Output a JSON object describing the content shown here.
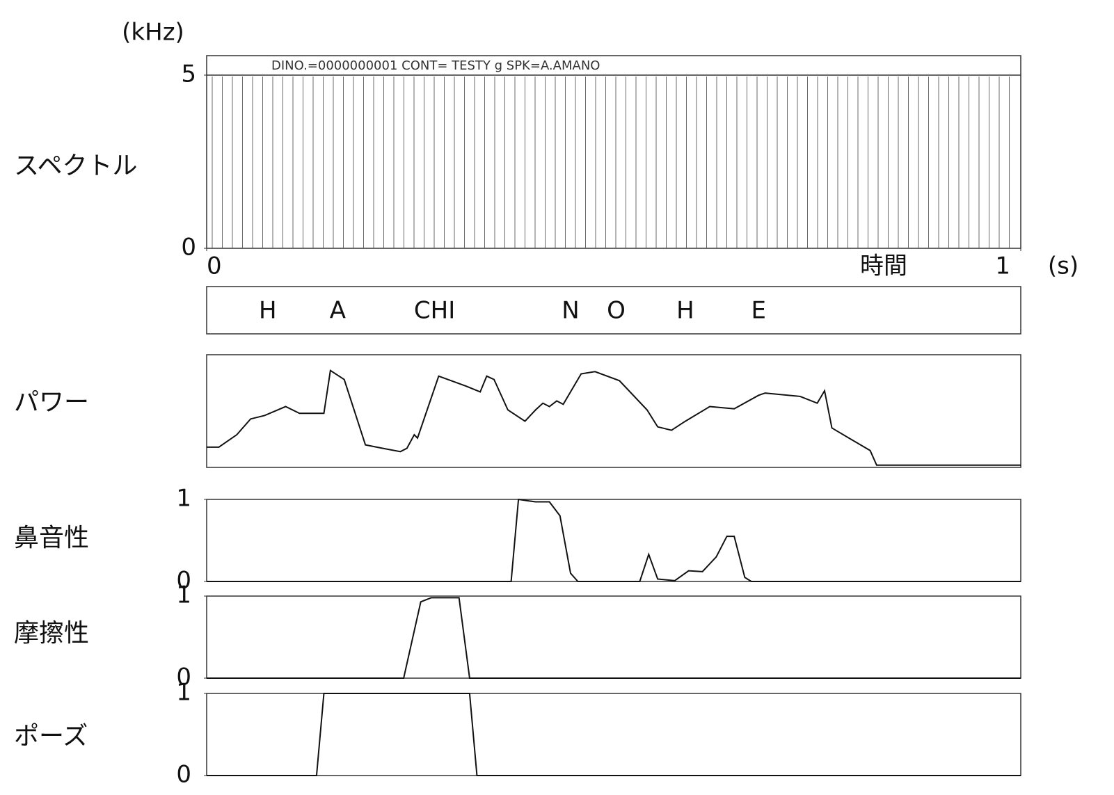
{
  "chart_data": [
    {
      "type": "waterfall",
      "ylabel": "スペクトル",
      "yunit": "(kHz)",
      "header": "DINO.=0000000001   CONT= TESTY   g   SPK=A.AMANO",
      "ylim": [
        0,
        5
      ],
      "yticks": [
        0,
        5
      ],
      "xlim": [
        0,
        1
      ],
      "xticks": [
        0,
        1
      ],
      "xlabel": "時間",
      "xunit": "(s)"
    },
    {
      "type": "segments",
      "labels": [
        "H",
        "A",
        "CHI",
        "N",
        "O",
        "H",
        "E"
      ],
      "x": [
        0.075,
        0.161,
        0.28,
        0.447,
        0.503,
        0.588,
        0.678
      ],
      "xlim": [
        0,
        1
      ]
    },
    {
      "type": "line",
      "ylabel": "パワー",
      "xlim": [
        0,
        1
      ],
      "ylim": [
        0,
        1
      ],
      "x": [
        0,
        0.015,
        0.037,
        0.054,
        0.071,
        0.097,
        0.114,
        0.144,
        0.152,
        0.169,
        0.195,
        0.216,
        0.238,
        0.246,
        0.255,
        0.259,
        0.285,
        0.319,
        0.336,
        0.344,
        0.353,
        0.37,
        0.391,
        0.404,
        0.413,
        0.421,
        0.43,
        0.438,
        0.46,
        0.477,
        0.507,
        0.541,
        0.554,
        0.571,
        0.588,
        0.618,
        0.648,
        0.678,
        0.686,
        0.729,
        0.75,
        0.759,
        0.768,
        0.789,
        0.815,
        0.823,
        1
      ],
      "values": [
        0.18,
        0.18,
        0.29,
        0.43,
        0.46,
        0.54,
        0.48,
        0.48,
        0.86,
        0.78,
        0.2,
        0.17,
        0.14,
        0.17,
        0.29,
        0.26,
        0.81,
        0.72,
        0.67,
        0.81,
        0.78,
        0.51,
        0.41,
        0.51,
        0.57,
        0.54,
        0.59,
        0.56,
        0.83,
        0.85,
        0.77,
        0.51,
        0.36,
        0.33,
        0.41,
        0.54,
        0.52,
        0.64,
        0.66,
        0.63,
        0.57,
        0.68,
        0.35,
        0.26,
        0.15,
        0.02,
        0.02
      ]
    },
    {
      "type": "line",
      "ylabel": "鼻音性",
      "xlim": [
        0,
        1
      ],
      "ylim": [
        0,
        1
      ],
      "yticks": [
        0,
        1
      ],
      "x": [
        0,
        0.344,
        0.374,
        0.383,
        0.404,
        0.421,
        0.434,
        0.447,
        0.456,
        0.532,
        0.543,
        0.554,
        0.575,
        0.592,
        0.609,
        0.626,
        0.639,
        0.648,
        0.661,
        0.669,
        1
      ],
      "values": [
        0,
        0,
        0,
        1,
        0.97,
        0.97,
        0.8,
        0.1,
        0,
        0,
        0.33,
        0.03,
        0.01,
        0.13,
        0.12,
        0.3,
        0.55,
        0.55,
        0.05,
        0,
        0
      ]
    },
    {
      "type": "line",
      "ylabel": "摩擦性",
      "xlim": [
        0,
        1
      ],
      "ylim": [
        0,
        1
      ],
      "yticks": [
        0,
        1
      ],
      "x": [
        0,
        0.242,
        0.263,
        0.276,
        0.31,
        0.323,
        1
      ],
      "values": [
        0,
        0,
        0.93,
        0.98,
        0.98,
        0,
        0
      ]
    },
    {
      "type": "line",
      "ylabel": "ポーズ",
      "xlim": [
        0,
        1
      ],
      "ylim": [
        0,
        1
      ],
      "yticks": [
        0,
        1
      ],
      "x": [
        0,
        0.135,
        0.144,
        0.323,
        0.332,
        1
      ],
      "values": [
        0,
        0,
        1,
        1,
        0,
        0
      ]
    }
  ]
}
